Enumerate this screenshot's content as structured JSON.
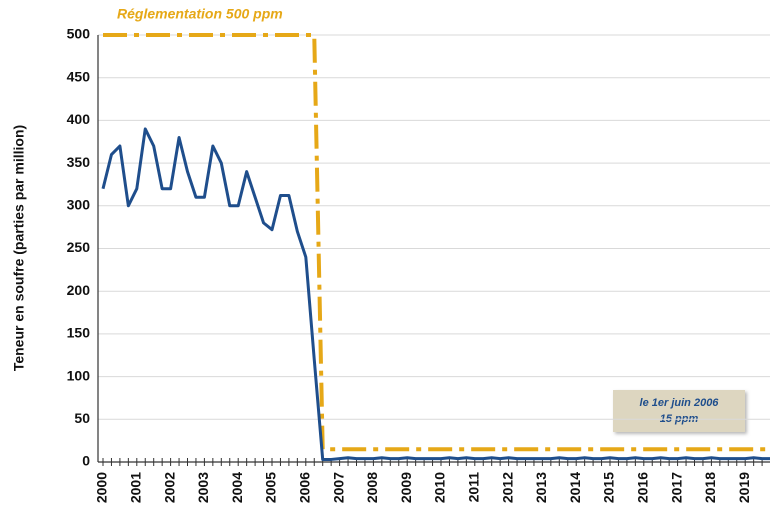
{
  "chart_data": {
    "type": "line",
    "annotations": [
      "Réglementation 500 ppm",
      "le 1er juin 2006",
      "15 ppm"
    ],
    "y_label": "Teneur en soufre (parties par million)",
    "categories": [
      "2000",
      null,
      null,
      null,
      "2001",
      null,
      null,
      null,
      "2002",
      null,
      null,
      null,
      "2003",
      null,
      null,
      null,
      "2004",
      null,
      null,
      null,
      "2005",
      null,
      null,
      null,
      "2006",
      null,
      null,
      null,
      "2007",
      null,
      null,
      null,
      "2008",
      null,
      null,
      null,
      "2009",
      null,
      null,
      null,
      "2010",
      null,
      null,
      null,
      "2011",
      null,
      null,
      null,
      "2012",
      null,
      null,
      null,
      "2013",
      null,
      null,
      null,
      "2014",
      null,
      null,
      null,
      "2015",
      null,
      null,
      null,
      "2016",
      null,
      null,
      null,
      "2017",
      null,
      null,
      null,
      "2018",
      null,
      null,
      null,
      "2019",
      null,
      null,
      null
    ],
    "series": [
      {
        "color": "#1f4e8c",
        "style": "solid",
        "values": [
          320,
          360,
          370,
          300,
          320,
          390,
          370,
          320,
          320,
          380,
          340,
          310,
          310,
          370,
          350,
          300,
          300,
          340,
          310,
          280,
          272,
          312,
          312,
          270,
          240,
          120,
          3,
          3,
          4,
          5,
          4,
          4,
          4,
          5,
          4,
          4,
          5,
          4,
          4,
          4,
          4,
          5,
          4,
          5,
          4,
          4,
          5,
          4,
          5,
          4,
          4,
          4,
          4,
          4,
          5,
          4,
          4,
          5,
          4,
          4,
          5,
          4,
          4,
          5,
          4,
          4,
          5,
          4,
          4,
          5,
          4,
          4,
          5,
          4,
          4,
          4,
          4,
          5,
          4,
          4
        ]
      },
      {
        "color": "#e6a817",
        "style": "dashdot",
        "values": [
          500,
          500,
          500,
          500,
          500,
          500,
          500,
          500,
          500,
          500,
          500,
          500,
          500,
          500,
          500,
          500,
          500,
          500,
          500,
          500,
          500,
          500,
          500,
          500,
          500,
          500,
          15,
          15,
          15,
          15,
          15,
          15,
          15,
          15,
          15,
          15,
          15,
          15,
          15,
          15,
          15,
          15,
          15,
          15,
          15,
          15,
          15,
          15,
          15,
          15,
          15,
          15,
          15,
          15,
          15,
          15,
          15,
          15,
          15,
          15,
          15,
          15,
          15,
          15,
          15,
          15,
          15,
          15,
          15,
          15,
          15,
          15,
          15,
          15,
          15,
          15,
          15,
          15,
          15,
          15
        ]
      }
    ],
    "ylim": [
      0,
      500
    ],
    "yticks": [
      0,
      50,
      100,
      150,
      200,
      250,
      300,
      350,
      400,
      450,
      500
    ],
    "grid": true
  }
}
